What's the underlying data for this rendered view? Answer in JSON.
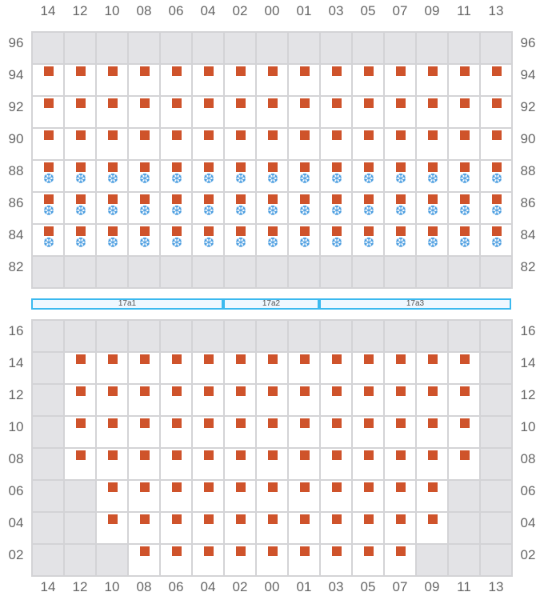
{
  "columns": [
    "14",
    "12",
    "10",
    "08",
    "06",
    "04",
    "02",
    "00",
    "01",
    "03",
    "05",
    "07",
    "09",
    "11",
    "13"
  ],
  "colors": {
    "container": "#cf532b",
    "reefer": "#4a9de0",
    "unavailable": "#e3e3e6",
    "bay_border": "#3bb9ef"
  },
  "legend_codes": {
    "g": "unavailable",
    "c": "container",
    "r": "reefer-container",
    "e": "empty-slot"
  },
  "icons": {
    "reefer": "snowflake-icon"
  },
  "deck": {
    "rows": [
      {
        "tier": "96",
        "cells": "ggggggggggggggg"
      },
      {
        "tier": "94",
        "cells": "ccccccccccccccc"
      },
      {
        "tier": "92",
        "cells": "ccccccccccccccc"
      },
      {
        "tier": "90",
        "cells": "ccccccccccccccc"
      },
      {
        "tier": "88",
        "cells": "rrrrrrrrrrrrrrr"
      },
      {
        "tier": "86",
        "cells": "rrrrrrrrrrrrrrr"
      },
      {
        "tier": "84",
        "cells": "rrrrrrrrrrrrrrr"
      },
      {
        "tier": "82",
        "cells": "ggggggggggggggg"
      }
    ]
  },
  "bays": [
    {
      "label": "17a1",
      "span": 6
    },
    {
      "label": "17a2",
      "span": 3
    },
    {
      "label": "17a3",
      "span": 6
    }
  ],
  "hold": {
    "rows": [
      {
        "tier": "16",
        "cells": "ggggggggggggggg"
      },
      {
        "tier": "14",
        "cells": "gcccccccccccccg"
      },
      {
        "tier": "12",
        "cells": "gcccccccccccccg"
      },
      {
        "tier": "10",
        "cells": "gcccccccccccccg"
      },
      {
        "tier": "08",
        "cells": "gcccccccccccccg"
      },
      {
        "tier": "06",
        "cells": "ggcccccccccccgg"
      },
      {
        "tier": "04",
        "cells": "ggcccccccccccgg"
      },
      {
        "tier": "02",
        "cells": "gggcccccccccggg"
      }
    ]
  }
}
